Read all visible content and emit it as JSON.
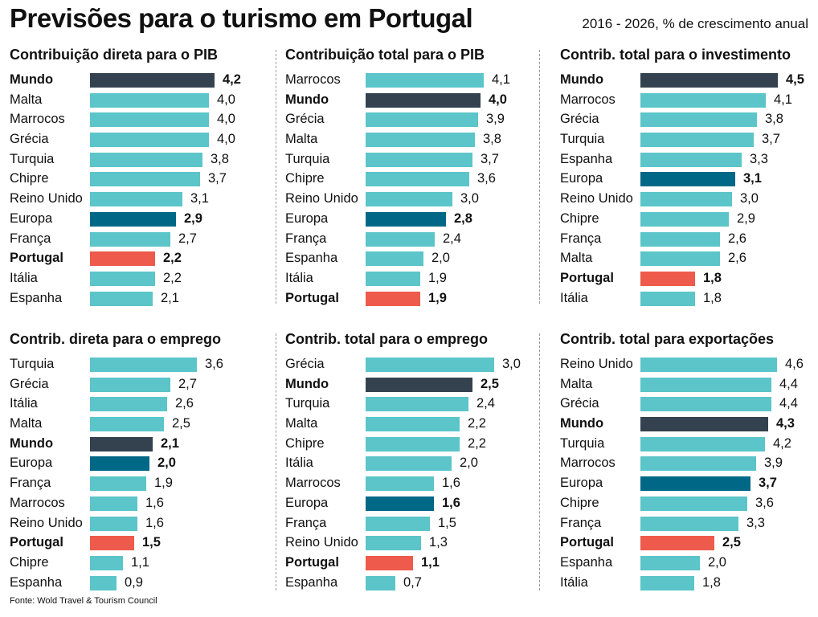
{
  "title": "Previsões para o turismo em Portugal",
  "subtitle": "2016 - 2026, % de crescimento anual",
  "source": "Fonte: Wold Travel & Tourism Council",
  "colors": {
    "default": "#5bc5c9",
    "Mundo": "#34424f",
    "Europa": "#006887",
    "Portugal": "#ee5a4b"
  },
  "chart_data": [
    {
      "type": "bar",
      "title": "Contribuição direta para o PIB",
      "categories": [
        "Mundo",
        "Malta",
        "Marrocos",
        "Grécia",
        "Turquia",
        "Chipre",
        "Reino Unido",
        "Europa",
        "França",
        "Portugal",
        "Itália",
        "Espanha"
      ],
      "values": [
        4.2,
        4.0,
        4.0,
        4.0,
        3.8,
        3.7,
        3.1,
        2.9,
        2.7,
        2.2,
        2.2,
        2.1
      ],
      "value_labels": [
        "4,2",
        "4,0",
        "4,0",
        "4,0",
        "3,8",
        "3,7",
        "3,1",
        "2,9",
        "2,7",
        "2,2",
        "2,2",
        "2,1"
      ],
      "xlabel": "",
      "ylabel": "% de crescimento anual",
      "xlim": [
        0,
        4.6
      ]
    },
    {
      "type": "bar",
      "title": "Contribuição total para o PIB",
      "categories": [
        "Marrocos",
        "Mundo",
        "Grécia",
        "Malta",
        "Turquia",
        "Chipre",
        "Reino Unido",
        "Europa",
        "França",
        "Espanha",
        "Itália",
        "Portugal"
      ],
      "values": [
        4.1,
        4.0,
        3.9,
        3.8,
        3.7,
        3.6,
        3.0,
        2.8,
        2.4,
        2.0,
        1.9,
        1.9
      ],
      "value_labels": [
        "4,1",
        "4,0",
        "3,9",
        "3,8",
        "3,7",
        "3,6",
        "3,0",
        "2,8",
        "2,4",
        "2,0",
        "1,9",
        "1,9"
      ],
      "xlabel": "",
      "ylabel": "% de crescimento anual",
      "xlim": [
        0,
        4.6
      ]
    },
    {
      "type": "bar",
      "title": "Contrib. total para o investimento",
      "categories": [
        "Mundo",
        "Marrocos",
        "Grécia",
        "Turquia",
        "Espanha",
        "Europa",
        "Reino Unido",
        "Chipre",
        "França",
        "Malta",
        "Portugal",
        "Itália"
      ],
      "values": [
        4.5,
        4.1,
        3.8,
        3.7,
        3.3,
        3.1,
        3.0,
        2.9,
        2.6,
        2.6,
        1.8,
        1.8
      ],
      "value_labels": [
        "4,5",
        "4,1",
        "3,8",
        "3,7",
        "3,3",
        "3,1",
        "3,0",
        "2,9",
        "2,6",
        "2,6",
        "1,8",
        "1,8"
      ],
      "xlabel": "",
      "ylabel": "% de crescimento anual",
      "xlim": [
        0,
        4.6
      ]
    },
    {
      "type": "bar",
      "title": "Contrib. direta para o emprego",
      "categories": [
        "Turquia",
        "Grécia",
        "Itália",
        "Malta",
        "Mundo",
        "Europa",
        "França",
        "Marrocos",
        "Reino Unido",
        "Portugal",
        "Chipre",
        "Espanha"
      ],
      "values": [
        3.6,
        2.7,
        2.6,
        2.5,
        2.1,
        2.0,
        1.9,
        1.6,
        1.6,
        1.5,
        1.1,
        0.9
      ],
      "value_labels": [
        "3,6",
        "2,7",
        "2,6",
        "2,5",
        "2,1",
        "2,0",
        "1,9",
        "1,6",
        "1,6",
        "1,5",
        "1,1",
        "0,9"
      ],
      "xlabel": "",
      "ylabel": "% de crescimento anual",
      "xlim": [
        0,
        4.6
      ]
    },
    {
      "type": "bar",
      "title": "Contrib. total para o emprego",
      "categories": [
        "Grécia",
        "Mundo",
        "Turquia",
        "Malta",
        "Chipre",
        "Itália",
        "Marrocos",
        "Europa",
        "França",
        "Reino Unido",
        "Portugal",
        "Espanha"
      ],
      "values": [
        3.0,
        2.5,
        2.4,
        2.2,
        2.2,
        2.0,
        1.6,
        1.6,
        1.5,
        1.3,
        1.1,
        0.7
      ],
      "value_labels": [
        "3,0",
        "2,5",
        "2,4",
        "2,2",
        "2,2",
        "2,0",
        "1,6",
        "1,6",
        "1,5",
        "1,3",
        "1,1",
        "0,7"
      ],
      "xlabel": "",
      "ylabel": "% de crescimento anual",
      "xlim": [
        0,
        3.4
      ]
    },
    {
      "type": "bar",
      "title": "Contrib. total para exportações",
      "categories": [
        "Reino Unido",
        "Malta",
        "Grécia",
        "Mundo",
        "Turquia",
        "Marrocos",
        "Europa",
        "Chipre",
        "França",
        "Portugal",
        "Espanha",
        "Itália"
      ],
      "values": [
        4.6,
        4.4,
        4.4,
        4.3,
        4.2,
        3.9,
        3.7,
        3.6,
        3.3,
        2.5,
        2.0,
        1.8
      ],
      "value_labels": [
        "4,6",
        "4,4",
        "4,4",
        "4,3",
        "4,2",
        "3,9",
        "3,7",
        "3,6",
        "3,3",
        "2,5",
        "2,0",
        "1,8"
      ],
      "xlabel": "",
      "ylabel": "% de crescimento anual",
      "xlim": [
        0,
        4.6
      ]
    }
  ]
}
